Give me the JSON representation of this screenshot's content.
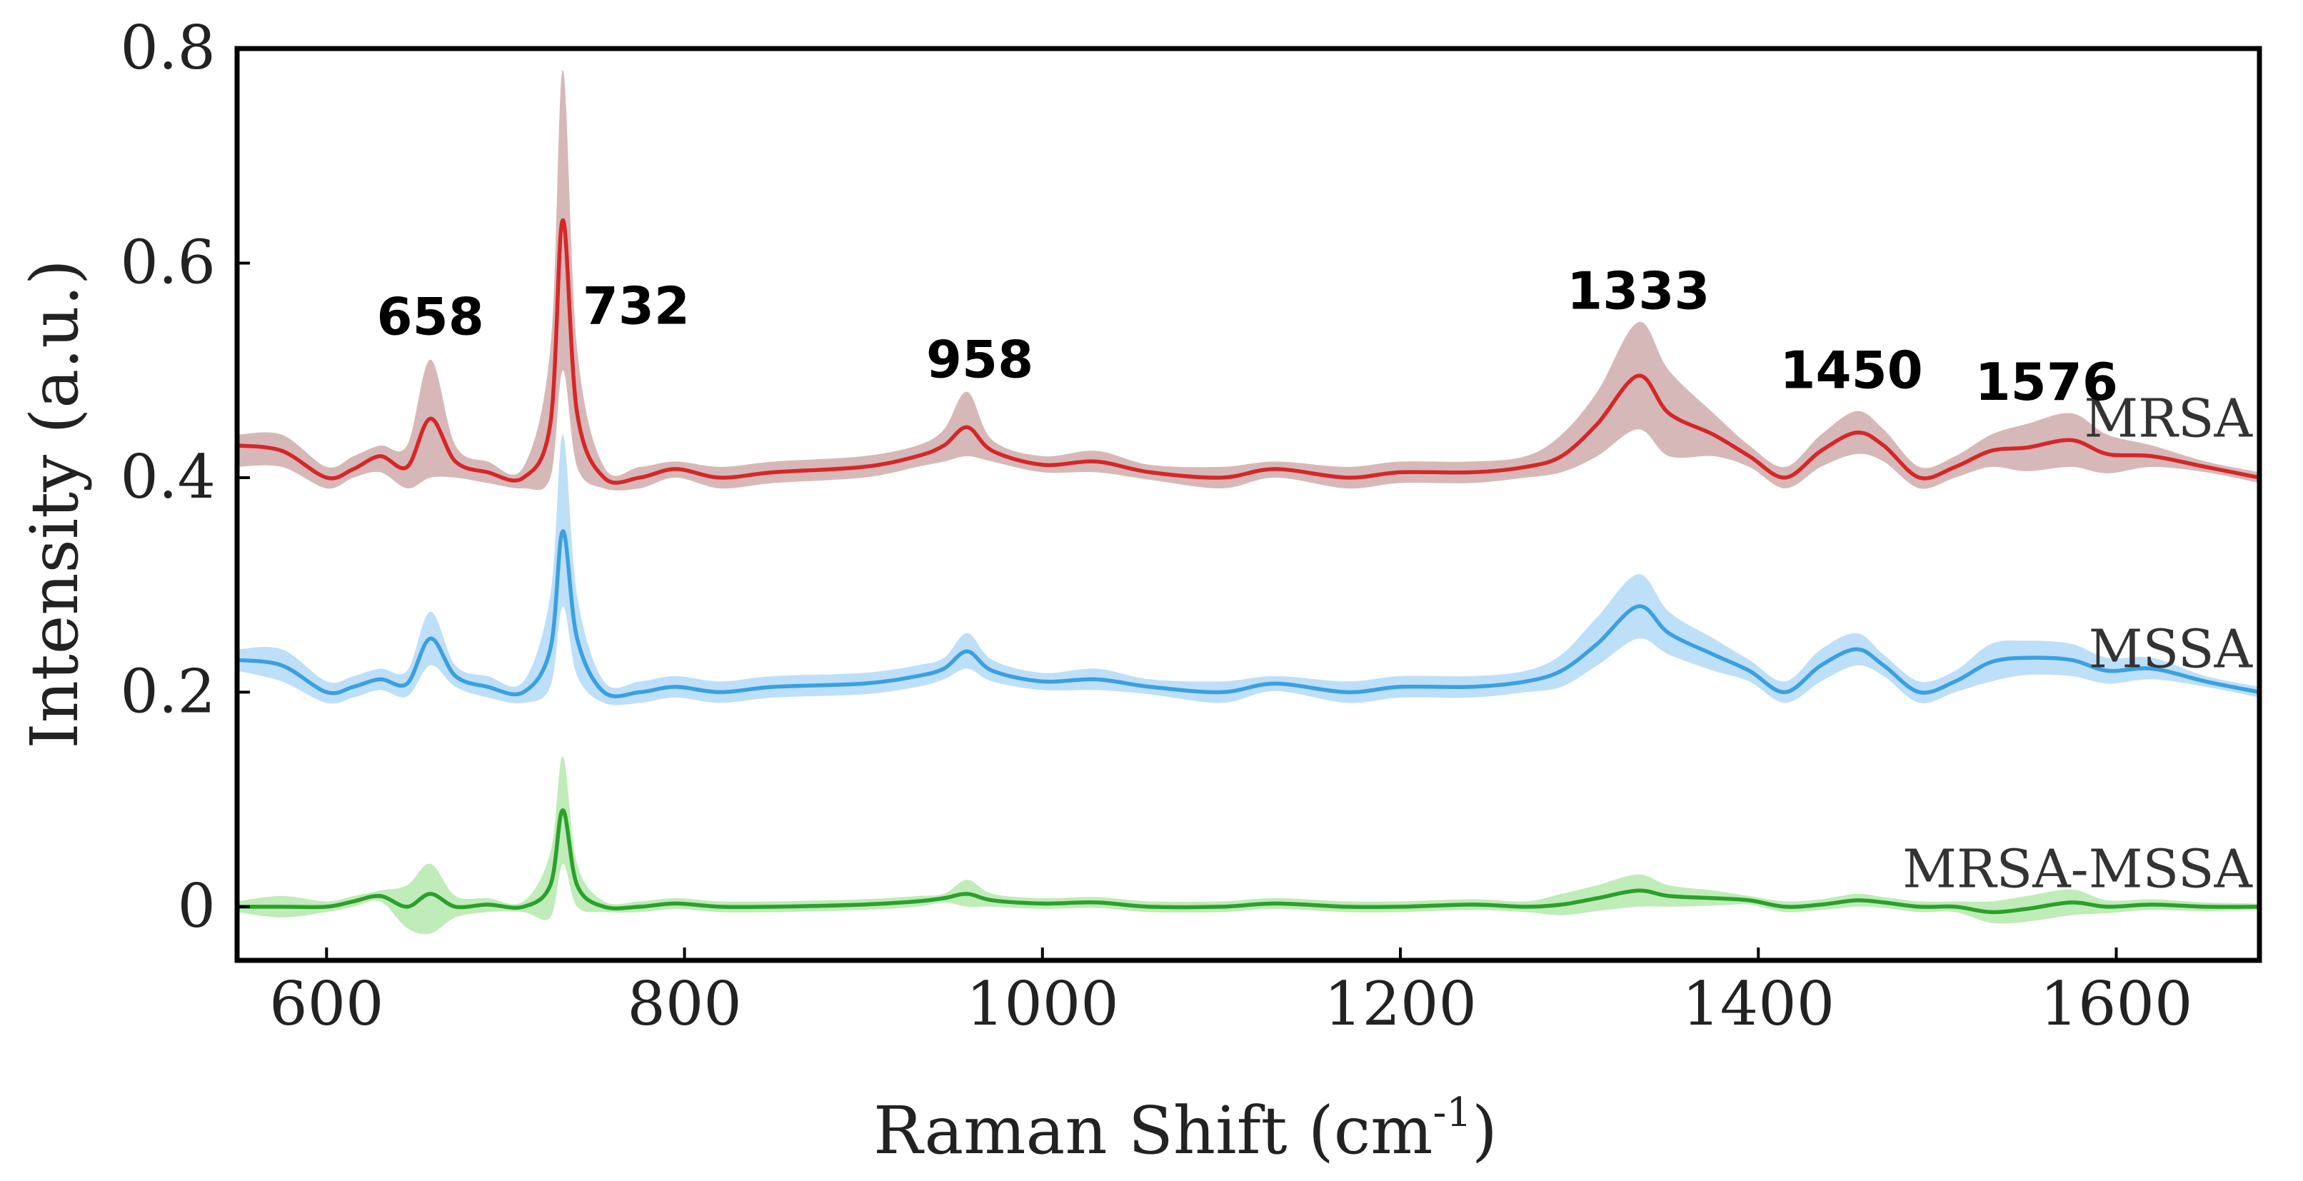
{
  "chart_data": {
    "type": "line",
    "xlabel": "Raman Shift (cm",
    "xlabel_sup": "-1",
    "xlabel_end": ")",
    "ylabel": "Intensity (a.u.)",
    "xlim": [
      550,
      1680
    ],
    "ylim": [
      -0.05,
      0.8
    ],
    "grid": false,
    "x_ticks": [
      600,
      800,
      1000,
      1200,
      1400,
      1600
    ],
    "y_ticks": [
      0,
      0.2,
      0.4,
      0.6,
      0.8
    ],
    "y_tick_labels": [
      "0",
      "0.2",
      "0.4",
      "0.6",
      "0.8"
    ],
    "x": [
      550,
      575,
      600,
      615,
      630,
      645,
      658,
      672,
      690,
      710,
      725,
      732,
      740,
      755,
      775,
      795,
      820,
      850,
      900,
      930,
      945,
      958,
      972,
      1000,
      1030,
      1060,
      1100,
      1130,
      1170,
      1200,
      1240,
      1270,
      1290,
      1310,
      1333,
      1350,
      1375,
      1395,
      1415,
      1435,
      1455,
      1470,
      1490,
      1510,
      1530,
      1550,
      1575,
      1595,
      1620,
      1650,
      1680
    ],
    "series": [
      {
        "name": "MRSA",
        "color": "#d62728",
        "band_color": "#c9a0a0",
        "values": [
          0.43,
          0.425,
          0.4,
          0.408,
          0.42,
          0.41,
          0.455,
          0.415,
          0.405,
          0.4,
          0.45,
          0.64,
          0.46,
          0.4,
          0.4,
          0.408,
          0.4,
          0.405,
          0.41,
          0.42,
          0.43,
          0.447,
          0.425,
          0.412,
          0.415,
          0.405,
          0.4,
          0.408,
          0.4,
          0.405,
          0.405,
          0.41,
          0.42,
          0.45,
          0.495,
          0.46,
          0.44,
          0.42,
          0.4,
          0.425,
          0.442,
          0.43,
          0.4,
          0.41,
          0.425,
          0.428,
          0.435,
          0.422,
          0.42,
          0.41,
          0.4
        ],
        "band_upper": [
          0.44,
          0.44,
          0.41,
          0.42,
          0.43,
          0.43,
          0.51,
          0.43,
          0.415,
          0.41,
          0.52,
          0.78,
          0.52,
          0.41,
          0.41,
          0.415,
          0.41,
          0.415,
          0.42,
          0.43,
          0.445,
          0.48,
          0.435,
          0.42,
          0.425,
          0.412,
          0.41,
          0.415,
          0.41,
          0.415,
          0.415,
          0.42,
          0.44,
          0.48,
          0.545,
          0.5,
          0.46,
          0.43,
          0.41,
          0.44,
          0.462,
          0.445,
          0.41,
          0.42,
          0.44,
          0.45,
          0.46,
          0.44,
          0.43,
          0.415,
          0.405
        ],
        "band_lower": [
          0.41,
          0.41,
          0.39,
          0.4,
          0.405,
          0.39,
          0.4,
          0.4,
          0.395,
          0.39,
          0.4,
          0.5,
          0.41,
          0.39,
          0.39,
          0.4,
          0.39,
          0.395,
          0.4,
          0.41,
          0.415,
          0.42,
          0.415,
          0.405,
          0.405,
          0.398,
          0.39,
          0.4,
          0.39,
          0.395,
          0.395,
          0.4,
          0.405,
          0.42,
          0.445,
          0.42,
          0.42,
          0.41,
          0.39,
          0.41,
          0.422,
          0.415,
          0.39,
          0.4,
          0.41,
          0.406,
          0.41,
          0.404,
          0.41,
          0.405,
          0.395
        ]
      },
      {
        "name": "MSSA",
        "color": "#3aa0e0",
        "band_color": "#a8d4f5",
        "values": [
          0.23,
          0.225,
          0.2,
          0.205,
          0.212,
          0.208,
          0.25,
          0.215,
          0.205,
          0.2,
          0.24,
          0.35,
          0.25,
          0.2,
          0.2,
          0.205,
          0.2,
          0.205,
          0.208,
          0.215,
          0.222,
          0.238,
          0.22,
          0.21,
          0.212,
          0.205,
          0.2,
          0.208,
          0.2,
          0.205,
          0.205,
          0.21,
          0.22,
          0.245,
          0.28,
          0.255,
          0.235,
          0.22,
          0.2,
          0.225,
          0.24,
          0.225,
          0.2,
          0.21,
          0.228,
          0.232,
          0.23,
          0.22,
          0.222,
          0.21,
          0.2
        ],
        "band_upper": [
          0.24,
          0.24,
          0.21,
          0.215,
          0.222,
          0.22,
          0.275,
          0.225,
          0.215,
          0.21,
          0.29,
          0.44,
          0.29,
          0.21,
          0.21,
          0.215,
          0.21,
          0.215,
          0.218,
          0.225,
          0.232,
          0.255,
          0.23,
          0.218,
          0.222,
          0.212,
          0.21,
          0.215,
          0.21,
          0.215,
          0.215,
          0.22,
          0.235,
          0.27,
          0.31,
          0.275,
          0.25,
          0.23,
          0.21,
          0.24,
          0.255,
          0.235,
          0.21,
          0.22,
          0.245,
          0.248,
          0.245,
          0.232,
          0.232,
          0.215,
          0.205
        ],
        "band_lower": [
          0.22,
          0.21,
          0.19,
          0.195,
          0.202,
          0.196,
          0.225,
          0.205,
          0.195,
          0.19,
          0.205,
          0.28,
          0.215,
          0.19,
          0.19,
          0.195,
          0.19,
          0.195,
          0.198,
          0.205,
          0.212,
          0.222,
          0.21,
          0.202,
          0.202,
          0.198,
          0.19,
          0.201,
          0.19,
          0.195,
          0.195,
          0.2,
          0.205,
          0.225,
          0.25,
          0.235,
          0.22,
          0.21,
          0.19,
          0.21,
          0.225,
          0.215,
          0.19,
          0.2,
          0.21,
          0.216,
          0.215,
          0.208,
          0.212,
          0.205,
          0.195
        ]
      },
      {
        "name": "MRSA-MSSA",
        "color": "#2ca02c",
        "band_color": "#a9e5a0",
        "values": [
          0.0,
          0.0,
          0.0,
          0.005,
          0.01,
          0.0,
          0.012,
          0.0,
          0.002,
          0.0,
          0.02,
          0.09,
          0.02,
          0.0,
          0.0,
          0.003,
          0.0,
          0.0,
          0.002,
          0.005,
          0.008,
          0.012,
          0.006,
          0.003,
          0.004,
          0.0,
          0.0,
          0.003,
          0.0,
          0.0,
          0.002,
          0.0,
          0.002,
          0.008,
          0.015,
          0.01,
          0.008,
          0.006,
          0.0,
          0.002,
          0.006,
          0.004,
          0.0,
          0.0,
          -0.005,
          -0.002,
          0.004,
          0.0,
          0.002,
          0.0,
          0.0
        ],
        "band_upper": [
          0.005,
          0.01,
          0.005,
          0.01,
          0.015,
          0.02,
          0.04,
          0.01,
          0.008,
          0.005,
          0.05,
          0.14,
          0.04,
          0.005,
          0.005,
          0.008,
          0.005,
          0.005,
          0.007,
          0.01,
          0.012,
          0.025,
          0.012,
          0.008,
          0.009,
          0.005,
          0.005,
          0.008,
          0.005,
          0.005,
          0.007,
          0.005,
          0.012,
          0.02,
          0.03,
          0.02,
          0.015,
          0.01,
          0.005,
          0.007,
          0.012,
          0.009,
          0.005,
          0.005,
          0.005,
          0.01,
          0.016,
          0.006,
          0.007,
          0.004,
          0.003
        ],
        "band_lower": [
          -0.005,
          -0.01,
          -0.005,
          0.0,
          0.005,
          -0.02,
          -0.025,
          -0.01,
          -0.005,
          -0.005,
          -0.01,
          0.04,
          0.0,
          -0.005,
          -0.005,
          -0.002,
          -0.005,
          -0.005,
          -0.003,
          0.0,
          0.004,
          0.0,
          0.0,
          -0.002,
          -0.001,
          -0.005,
          -0.005,
          -0.002,
          -0.005,
          -0.005,
          -0.003,
          -0.005,
          -0.008,
          -0.004,
          0.0,
          0.0,
          0.001,
          0.002,
          -0.005,
          -0.003,
          0.0,
          -0.001,
          -0.005,
          -0.005,
          -0.015,
          -0.014,
          -0.008,
          -0.006,
          -0.003,
          -0.004,
          -0.003
        ]
      }
    ],
    "series_labels": [
      {
        "text": "MRSA",
        "x": 1680,
        "y": 0.455
      },
      {
        "text": "MSSA",
        "x": 1680,
        "y": 0.24
      },
      {
        "text": "MRSA-MSSA",
        "x": 1680,
        "y": 0.035
      }
    ],
    "annotations": [
      {
        "text": "658",
        "x": 658,
        "y": 0.55
      },
      {
        "text": "732",
        "x": 773,
        "y": 0.56
      },
      {
        "text": "958",
        "x": 965,
        "y": 0.51
      },
      {
        "text": "1333",
        "x": 1333,
        "y": 0.574
      },
      {
        "text": "1450",
        "x": 1452,
        "y": 0.5
      },
      {
        "text": "1576",
        "x": 1561,
        "y": 0.489
      }
    ]
  }
}
